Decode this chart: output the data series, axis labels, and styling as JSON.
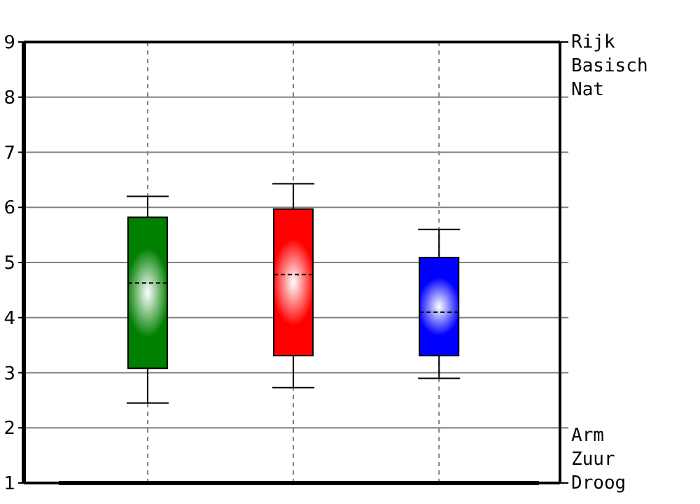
{
  "chart_data": {
    "type": "box",
    "categories": [
      null,
      null,
      null
    ],
    "boxes": [
      {
        "low": 2.45,
        "q1": 3.08,
        "median": 4.63,
        "q3": 5.82,
        "high": 6.2
      },
      {
        "low": 2.73,
        "q1": 3.31,
        "median": 4.78,
        "q3": 5.97,
        "high": 6.43
      },
      {
        "low": 2.9,
        "q1": 3.31,
        "median": 4.1,
        "q3": 5.09,
        "high": 5.6
      }
    ],
    "colors": [
      "#008000",
      "#ff0000",
      "#0000ff"
    ],
    "ylim": [
      1,
      9
    ],
    "yticks": [
      1,
      2,
      3,
      4,
      5,
      6,
      7,
      8,
      9
    ],
    "annotations": [
      "Rijk\nBasisch\nNat",
      "Arm\nZuur\nDroog"
    ],
    "grid": true
  }
}
